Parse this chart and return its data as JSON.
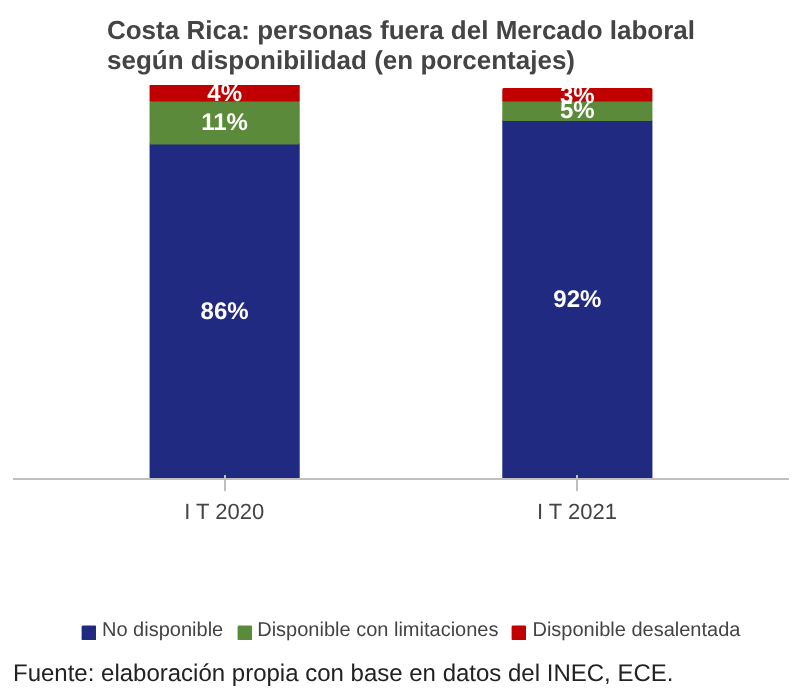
{
  "chart_data": {
    "type": "bar",
    "title": "Costa Rica: personas fuera del Mercado laboral\nsegún disponibilidad (en porcentajes)",
    "categories": [
      "I T 2020",
      "I T 2021"
    ],
    "stacked": true,
    "data_labels": true,
    "grid": false,
    "legend": "bottom",
    "tick_labels": "x",
    "series": [
      {
        "name": "No disponible",
        "color": "#1f2a80",
        "values": [
          86,
          92
        ],
        "value_labels": [
          "86%",
          "92%"
        ]
      },
      {
        "name": "Disponible con limitaciones",
        "color": "#5b8a3a",
        "values": [
          11,
          5
        ],
        "value_labels": [
          "11%",
          "5%"
        ]
      },
      {
        "name": "Disponible desalentada",
        "color": "#c00000",
        "values": [
          4,
          3
        ],
        "value_labels": [
          "4%",
          "3%"
        ]
      }
    ],
    "annotations": [
      "Fuente: elaboración propia con base en datos del INEC, ECE."
    ]
  }
}
